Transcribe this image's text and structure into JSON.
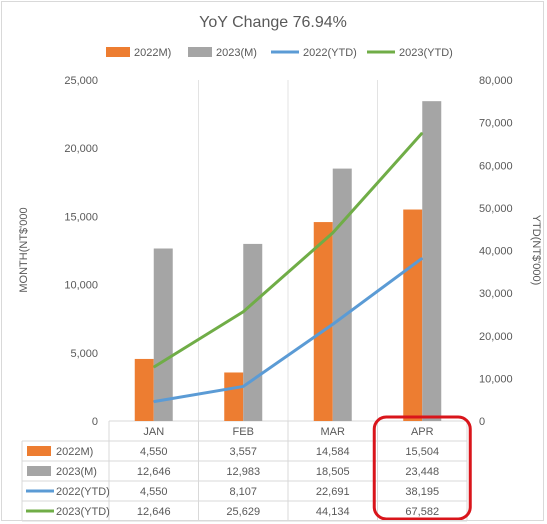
{
  "chart_data": {
    "type": "bar-line-combo",
    "title": "YoY Change 76.94%",
    "categories": [
      "JAN",
      "FEB",
      "MAR",
      "APR"
    ],
    "y_left": {
      "label": "MONTH(NT$'000",
      "range": [
        0,
        25000
      ],
      "ticks": [
        "0",
        "5,000",
        "10,000",
        "15,000",
        "20,000",
        "25,000"
      ]
    },
    "y_right": {
      "label": "YTD(NT$'000)",
      "range": [
        0,
        80000
      ],
      "ticks": [
        "0",
        "10,000",
        "20,000",
        "30,000",
        "40,000",
        "50,000",
        "60,000",
        "70,000",
        "80,000"
      ]
    },
    "grid": true,
    "legend_position": "top",
    "series": [
      {
        "name": "2022M)",
        "type": "bar",
        "axis": "left",
        "color": "#ed7d31",
        "values": [
          4550,
          3557,
          14584,
          15504
        ],
        "labels": [
          "4,550",
          "3,557",
          "14,584",
          "15,504"
        ]
      },
      {
        "name": "2023(M)",
        "type": "bar",
        "axis": "left",
        "color": "#a5a5a5",
        "values": [
          12646,
          12983,
          18505,
          23448
        ],
        "labels": [
          "12,646",
          "12,983",
          "18,505",
          "23,448"
        ]
      },
      {
        "name": "2022(YTD)",
        "type": "line",
        "axis": "right",
        "color": "#5b9bd5",
        "values": [
          4550,
          8107,
          22691,
          38195
        ],
        "labels": [
          "4,550",
          "8,107",
          "22,691",
          "38,195"
        ]
      },
      {
        "name": "2023(YTD)",
        "type": "line",
        "axis": "right",
        "color": "#70ad47",
        "values": [
          12646,
          25629,
          44134,
          67582
        ],
        "labels": [
          "12,646",
          "25,629",
          "44,134",
          "67,582"
        ]
      }
    ],
    "annotation": {
      "type": "highlight",
      "category": "APR",
      "color": "#d9151b"
    }
  }
}
